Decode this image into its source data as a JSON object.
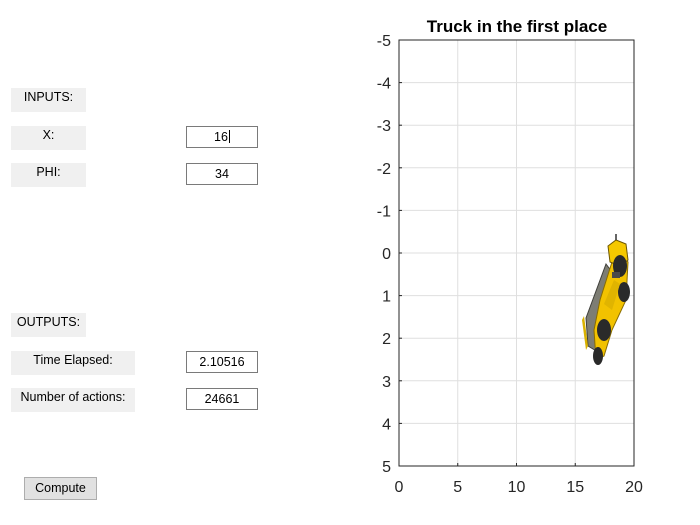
{
  "inputs": {
    "header": "INPUTS:",
    "x_label": "X:",
    "x_value": "16",
    "phi_label": "PHI:",
    "phi_value": "34"
  },
  "outputs": {
    "header": "OUTPUTS:",
    "time_label": "Time Elapsed:",
    "time_value": "2.10516",
    "actions_label": "Number of actions:",
    "actions_value": "24661"
  },
  "compute_label": "Compute",
  "chart_data": {
    "type": "scatter",
    "title": "Truck in the first place",
    "xlabel": "",
    "ylabel": "",
    "xlim": [
      0,
      20
    ],
    "ylim": [
      -5,
      5
    ],
    "y_reversed": true,
    "grid": true,
    "x_ticks": [
      "0",
      "5",
      "10",
      "15",
      "20"
    ],
    "y_ticks": [
      "-5",
      "-4",
      "-3",
      "-2",
      "-1",
      "0",
      "1",
      "2",
      "3",
      "4",
      "5"
    ],
    "truck_image": {
      "x_range": [
        15.9,
        19.2
      ],
      "y_range": [
        -0.3,
        2.6
      ],
      "colors": {
        "body": "#f2c200",
        "dump_bed": "#7d7d74",
        "tire": "#2a2a2a"
      }
    }
  }
}
